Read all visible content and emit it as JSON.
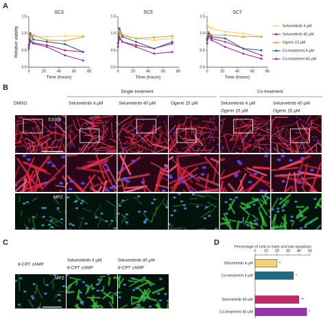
{
  "chart_data": [
    {
      "type": "line",
      "title": "SC3",
      "x_label": "Time (hours)",
      "y_label": "Relative viability",
      "x": [
        0,
        2,
        6,
        24,
        48,
        72
      ],
      "xlim": [
        0,
        80
      ],
      "xticks": [
        0,
        20,
        40,
        60,
        80
      ],
      "ylim": [
        0,
        1.5
      ],
      "yticks": [
        {
          "value": 0,
          "label": "0.0"
        },
        0.5,
        {
          "value": 1,
          "label": "1.0"
        },
        1.5
      ],
      "series": [
        {
          "name": "Selumetinib 4 µM",
          "color": "#f3d36b",
          "values": [
            1.0,
            0.95,
            0.9,
            0.9,
            0.92,
            0.92
          ]
        },
        {
          "name": "Selumetinib 40 µM",
          "color": "#c8246a",
          "values": [
            0.6,
            0.8,
            0.72,
            0.65,
            0.5,
            0.45
          ]
        },
        {
          "name": "Ogerin 15 µM",
          "color": "#ef9d33",
          "values": [
            1.0,
            0.85,
            0.95,
            0.8,
            0.78,
            0.9
          ]
        },
        {
          "name": "Co-treatment 4 µM",
          "color": "#1f6b86",
          "values": [
            0.65,
            1.0,
            0.82,
            0.75,
            0.68,
            0.45
          ]
        },
        {
          "name": "Co-treatment 40 µM",
          "color": "#9a2fb0",
          "values": [
            0.55,
            0.75,
            0.7,
            0.6,
            0.35,
            0.2
          ]
        }
      ]
    },
    {
      "type": "line",
      "title": "SC5",
      "x_label": "Time (hours)",
      "x": [
        0,
        2,
        6,
        24,
        48,
        72
      ],
      "xlim": [
        0,
        80
      ],
      "xticks": [
        0,
        20,
        40,
        60,
        80
      ],
      "ylim": [
        0,
        1.5
      ],
      "yticks": [
        {
          "value": 0,
          "label": "0.0"
        },
        0.5,
        {
          "value": 1,
          "label": "1.0"
        },
        1.5
      ],
      "series": [
        {
          "color": "#f3d36b",
          "values": [
            1.0,
            0.95,
            0.92,
            0.85,
            0.8,
            0.85
          ]
        },
        {
          "color": "#c8246a",
          "values": [
            0.6,
            0.85,
            0.75,
            0.65,
            0.55,
            0.7
          ]
        },
        {
          "color": "#ef9d33",
          "values": [
            1.0,
            1.0,
            0.95,
            0.85,
            0.88,
            0.92
          ]
        },
        {
          "color": "#1f6b86",
          "values": [
            0.7,
            1.15,
            0.9,
            0.75,
            0.55,
            0.75
          ]
        },
        {
          "color": "#9a2fb0",
          "values": [
            0.6,
            0.9,
            0.75,
            0.6,
            0.4,
            0.45
          ]
        }
      ]
    },
    {
      "type": "line",
      "title": "SC7",
      "x_label": "Time (hours)",
      "x": [
        0,
        2,
        6,
        24,
        48,
        72
      ],
      "xlim": [
        0,
        80
      ],
      "xticks": [
        0,
        20,
        40,
        60,
        80
      ],
      "ylim": [
        0,
        1.5
      ],
      "yticks": [
        {
          "value": 0,
          "label": "0.0"
        },
        0.5,
        {
          "value": 1,
          "label": "1.0"
        },
        1.5
      ],
      "series": [
        {
          "color": "#f3d36b",
          "values": [
            1.3,
            1.2,
            1.15,
            1.05,
            1.0,
            0.9
          ]
        },
        {
          "color": "#c8246a",
          "values": [
            0.8,
            1.0,
            0.85,
            0.75,
            0.55,
            0.35
          ]
        },
        {
          "color": "#ef9d33",
          "values": [
            1.0,
            1.05,
            0.95,
            0.95,
            0.9,
            0.9
          ]
        },
        {
          "color": "#1f6b86",
          "values": [
            0.85,
            1.0,
            0.9,
            0.85,
            0.55,
            0.5
          ]
        },
        {
          "color": "#9a2fb0",
          "values": [
            0.7,
            0.9,
            0.8,
            0.6,
            0.4,
            0.25
          ]
        }
      ]
    },
    {
      "type": "hbar",
      "title": "Percentage of cells in early and late apoptosis",
      "categories": [
        "Selumetinib 4 µM",
        "Co-treatment 4 µM",
        "Selumetinib 40 µM",
        "Co-treatment 40 µM"
      ],
      "values": [
        20,
        35,
        40,
        47
      ],
      "colors": [
        "#f3d36b",
        "#1f6b86",
        "#c8246a",
        "#9a2fb0"
      ],
      "annotations": [
        "*",
        "*",
        "**",
        "*"
      ],
      "xlim": [
        0,
        50
      ],
      "xticks": [
        0,
        10,
        20,
        30,
        40,
        50
      ]
    }
  ],
  "panels": {
    "a": "A",
    "b": "B",
    "c": "C",
    "d": "D"
  },
  "panel_b": {
    "group_labels": [
      "Single treatment",
      "Co-treatment"
    ],
    "columns": [
      [
        "DMSO"
      ],
      [
        "Selumetinib 4 µM"
      ],
      [
        "Selumetinib 40 µM"
      ],
      [
        "Ogerin 15 µM"
      ],
      [
        "Selumetinib 4 µM",
        "Ogerin 15 µM"
      ],
      [
        "Selumetinib 40 µM",
        "Ogerin 15 µM"
      ]
    ],
    "row_labels": [
      "S100B",
      "MPZ"
    ]
  },
  "panel_c": {
    "columns": [
      [
        "8-CPT cAMP"
      ],
      [
        "Selumetinib 4 µM",
        "8-CPT cAMP"
      ],
      [
        "Selumetinib 40 µM",
        "8-CPT cAMP"
      ]
    ],
    "row_label": "MPZ"
  }
}
